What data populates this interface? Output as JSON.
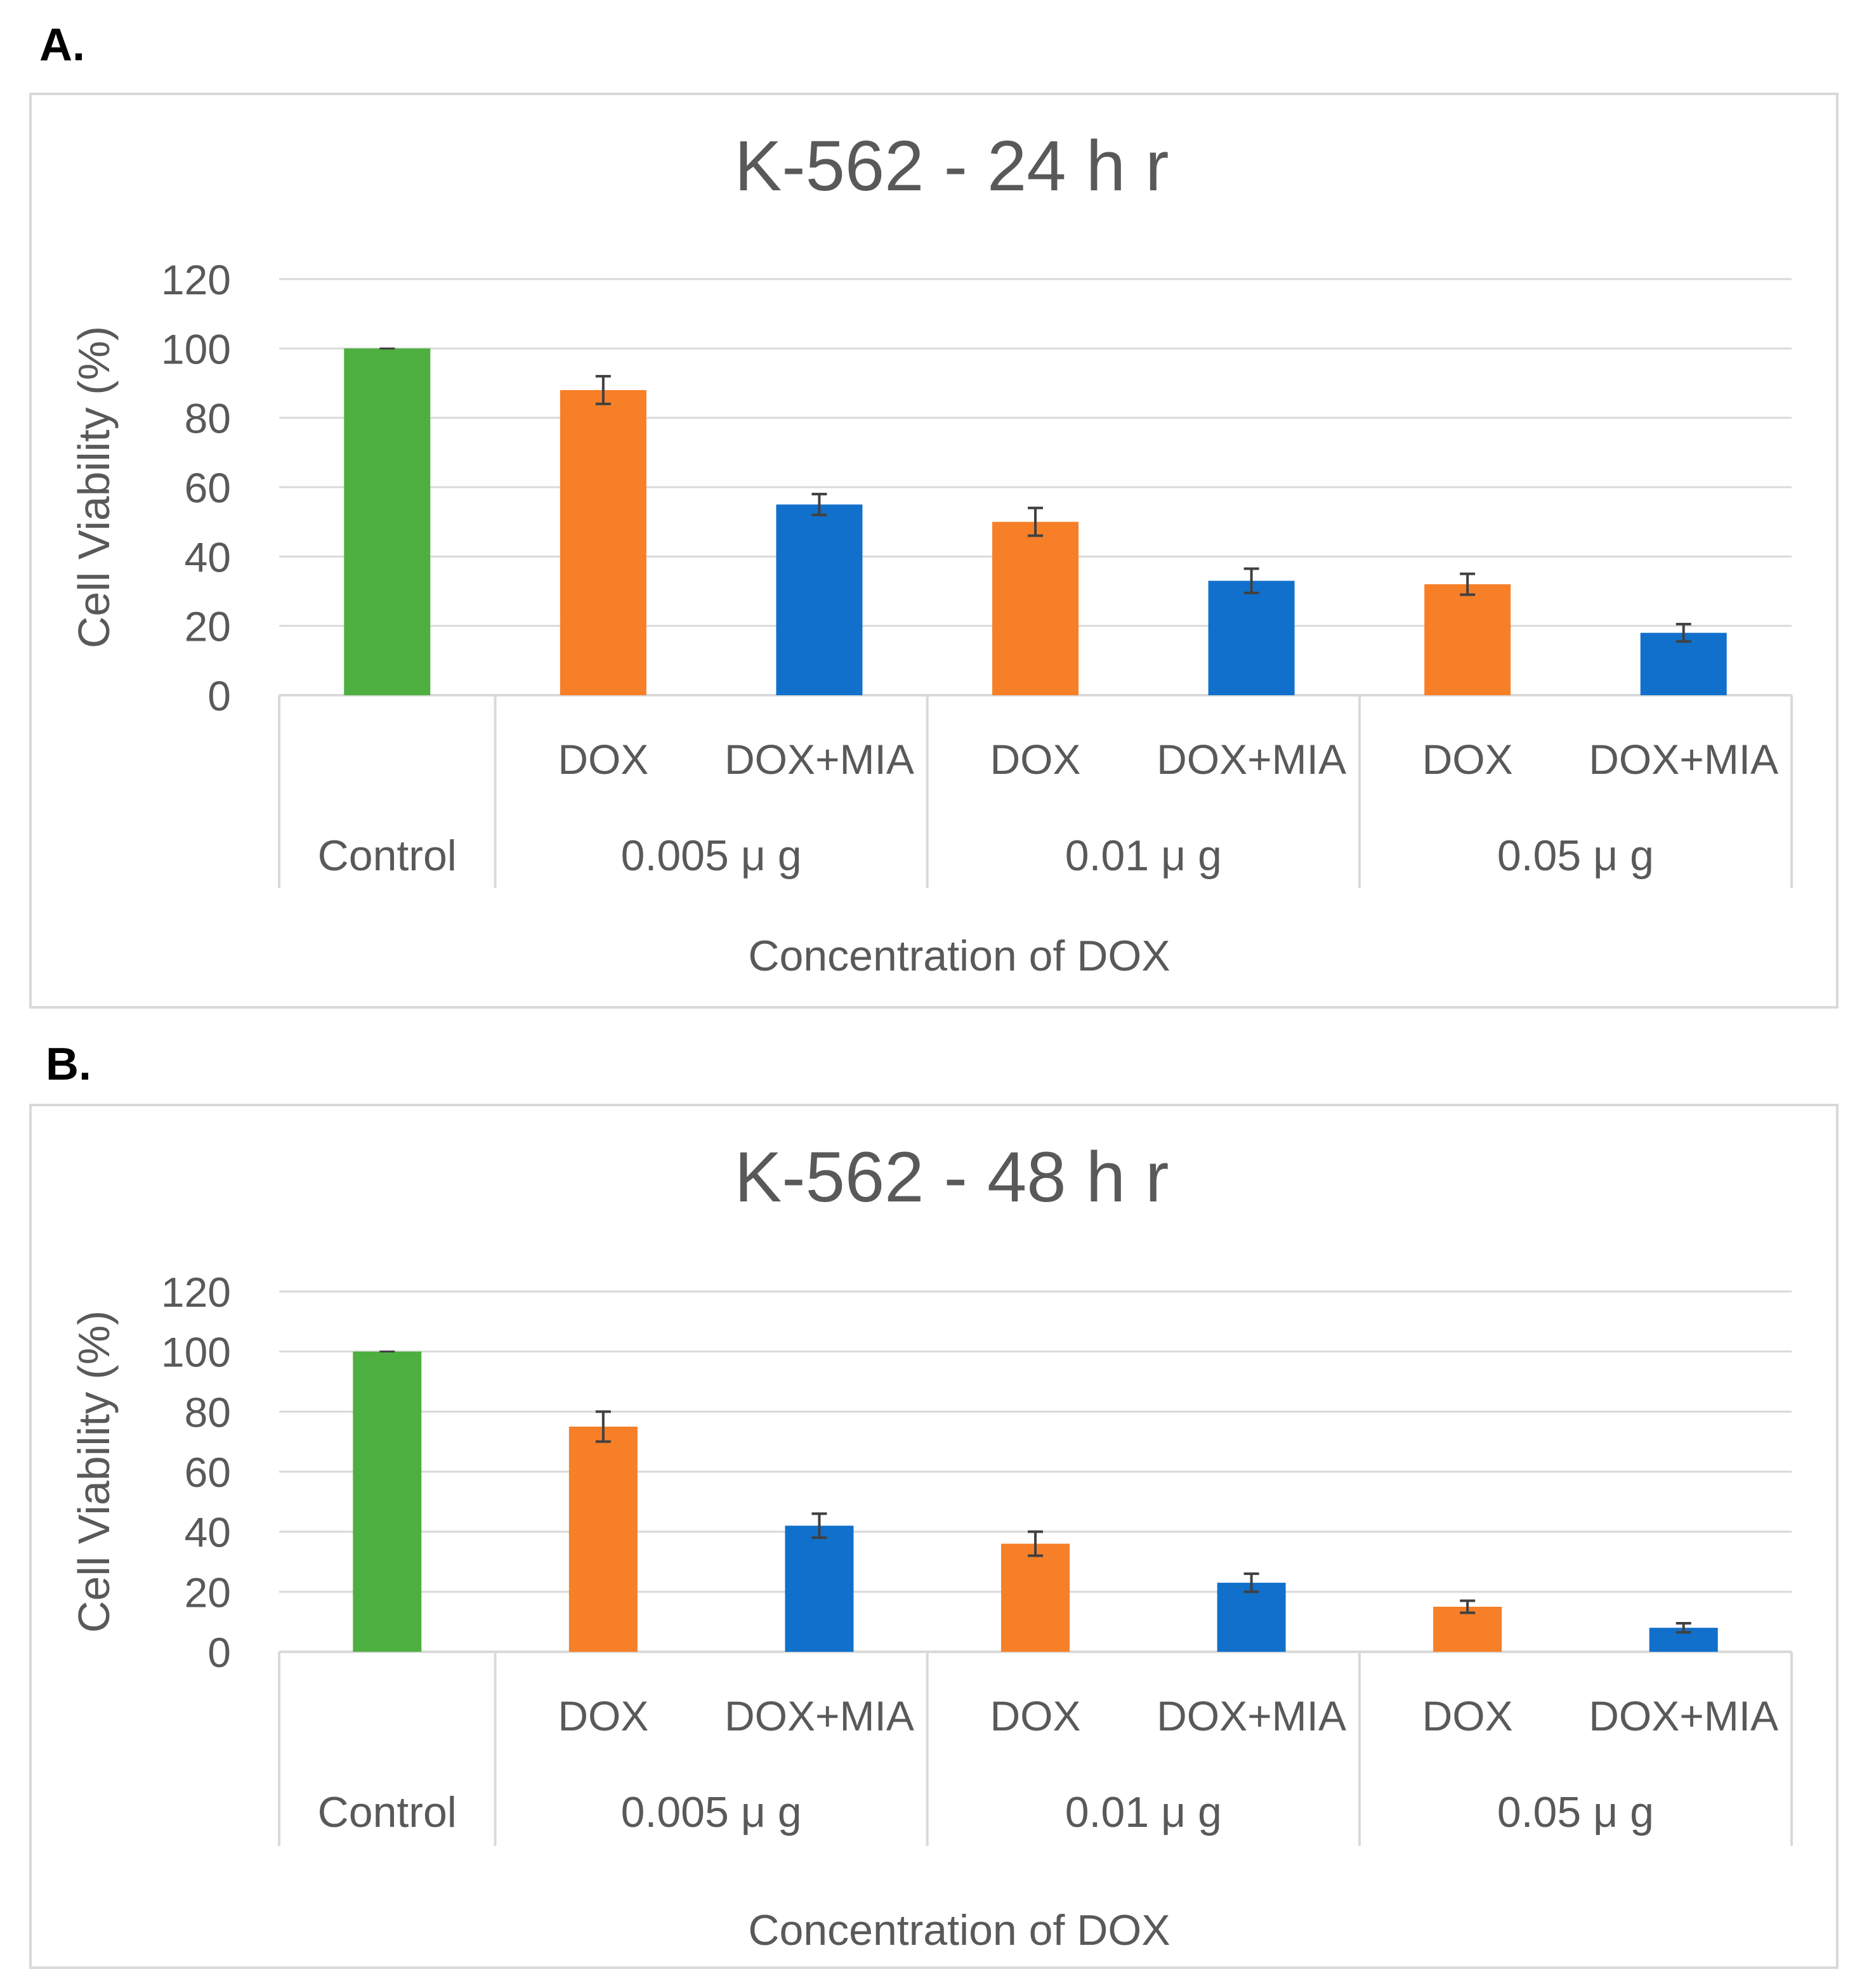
{
  "colors": {
    "control": "#4daf3f",
    "dox": "#f77f28",
    "dox_mia": "#1170cb",
    "gridline": "#d9d9d9",
    "axis": "#d9d9d9",
    "text": "#595959",
    "frame": "#d9d9d9",
    "error_bar": "#404040"
  },
  "chart_data": [
    {
      "panel_label": "A.",
      "type": "bar",
      "title": "K-562 - 24 h r",
      "ylabel": "Cell Viability (%)",
      "xlabel": "Concentration of DOX",
      "ylim": [
        0,
        120
      ],
      "yticks": [
        0,
        20,
        40,
        60,
        80,
        100,
        120
      ],
      "grid": true,
      "categories": [
        "Control",
        "DOX",
        "DOX+MIA",
        "DOX",
        "DOX+MIA",
        "DOX",
        "DOX+MIA"
      ],
      "groups": [
        {
          "label": "Control",
          "span": 1
        },
        {
          "label": "0.005 μ g",
          "span": 2
        },
        {
          "label": "0.01 μ g",
          "span": 2
        },
        {
          "label": "0.05 μ g",
          "span": 2
        }
      ],
      "values": [
        100,
        88,
        55,
        50,
        33,
        32,
        18
      ],
      "errors": [
        0,
        4,
        3,
        4,
        3.5,
        3,
        2.5
      ],
      "color_keys": [
        "control",
        "dox",
        "dox_mia",
        "dox",
        "dox_mia",
        "dox",
        "dox_mia"
      ]
    },
    {
      "panel_label": "B.",
      "type": "bar",
      "title": "K-562 - 48 h r",
      "ylabel": "Cell Viability (%)",
      "xlabel": "Concentration of DOX",
      "ylim": [
        0,
        120
      ],
      "yticks": [
        0,
        20,
        40,
        60,
        80,
        100,
        120
      ],
      "grid": true,
      "categories": [
        "Control",
        "DOX",
        "DOX+MIA",
        "DOX",
        "DOX+MIA",
        "DOX",
        "DOX+MIA"
      ],
      "groups": [
        {
          "label": "Control",
          "span": 1
        },
        {
          "label": "0.005 μ g",
          "span": 2
        },
        {
          "label": "0.01 μ g",
          "span": 2
        },
        {
          "label": "0.05 μ g",
          "span": 2
        }
      ],
      "values": [
        100,
        75,
        42,
        36,
        23,
        15,
        8
      ],
      "errors": [
        0,
        5,
        4,
        4,
        3,
        2,
        1.5
      ],
      "color_keys": [
        "control",
        "dox",
        "dox_mia",
        "dox",
        "dox_mia",
        "dox",
        "dox_mia"
      ]
    }
  ]
}
